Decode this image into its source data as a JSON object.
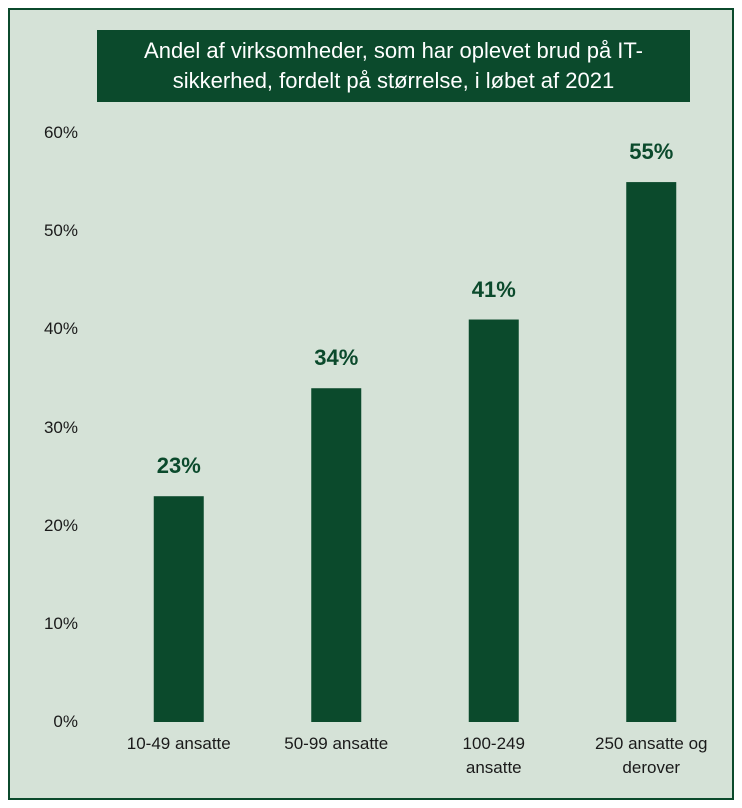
{
  "chart_data": {
    "type": "bar",
    "title": "Andel af virksomheder, som har oplevet brud på IT-sikkerhed, fordelt på størrelse, i løbet af 2021",
    "categories": [
      "10-49 ansatte",
      "50-99 ansatte",
      "100-249 ansatte",
      "250 ansatte og derover"
    ],
    "values": [
      23,
      34,
      41,
      55
    ],
    "value_labels": [
      "23%",
      "34%",
      "41%",
      "55%"
    ],
    "color": "#0b4a2c",
    "ylim": [
      0,
      60
    ],
    "yticks": [
      {
        "value": 0,
        "label": "0%"
      },
      {
        "value": 10,
        "label": "10%"
      },
      {
        "value": 20,
        "label": "20%"
      },
      {
        "value": 30,
        "label": "30%"
      },
      {
        "value": 40,
        "label": "40%"
      },
      {
        "value": 50,
        "label": "50%"
      },
      {
        "value": 60,
        "label": "60%"
      }
    ],
    "grid": false
  }
}
